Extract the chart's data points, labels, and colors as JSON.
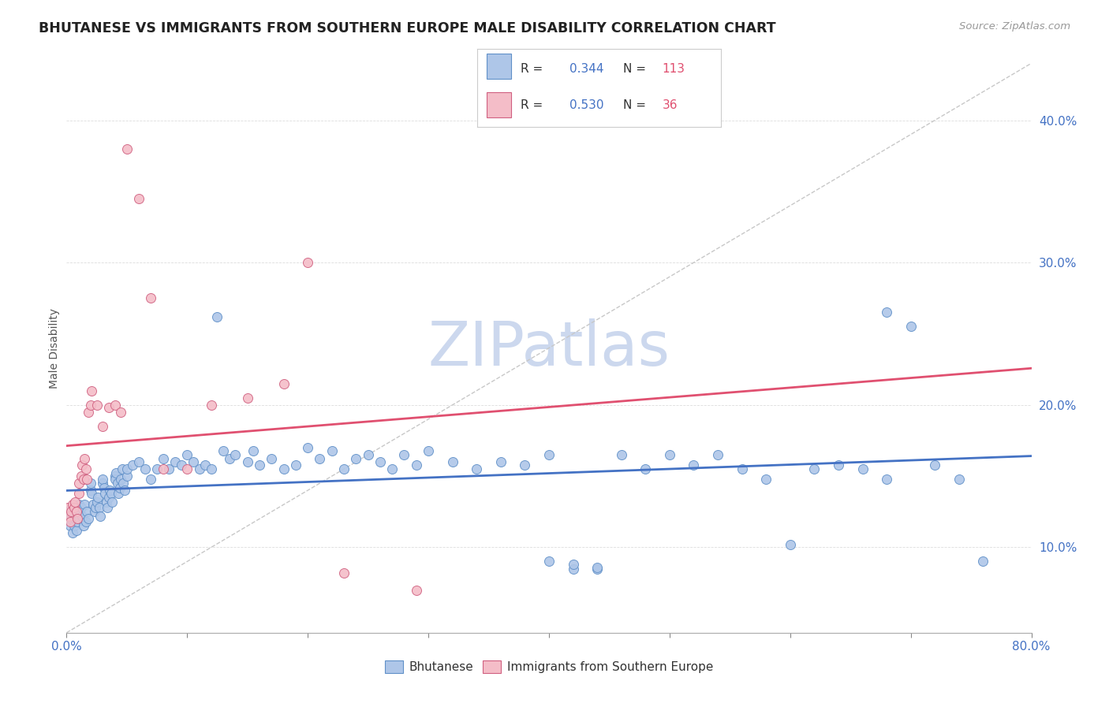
{
  "title": "BHUTANESE VS IMMIGRANTS FROM SOUTHERN EUROPE MALE DISABILITY CORRELATION CHART",
  "source": "Source: ZipAtlas.com",
  "ylabel": "Male Disability",
  "y_ticks": [
    0.1,
    0.2,
    0.3,
    0.4
  ],
  "y_tick_labels": [
    "10.0%",
    "20.0%",
    "30.0%",
    "40.0%"
  ],
  "xlim": [
    0.0,
    0.8
  ],
  "ylim": [
    0.04,
    0.44
  ],
  "blue_R": "0.344",
  "blue_N": "113",
  "pink_R": "0.530",
  "pink_N": "36",
  "blue_color": "#aec6e8",
  "blue_line_color": "#4472c4",
  "blue_edge_color": "#6090c8",
  "pink_color": "#f4bdc8",
  "pink_line_color": "#e05070",
  "pink_edge_color": "#d06080",
  "ref_line_color": "#c8c8c8",
  "watermark": "ZIPatlas",
  "watermark_color": "#ccd8ee",
  "grid_color": "#dddddd",
  "blue_scatter_x": [
    0.001,
    0.002,
    0.003,
    0.004,
    0.005,
    0.006,
    0.007,
    0.008,
    0.009,
    0.01,
    0.01,
    0.011,
    0.012,
    0.013,
    0.014,
    0.015,
    0.016,
    0.017,
    0.018,
    0.02,
    0.02,
    0.021,
    0.022,
    0.023,
    0.024,
    0.025,
    0.026,
    0.027,
    0.028,
    0.03,
    0.03,
    0.031,
    0.032,
    0.033,
    0.034,
    0.035,
    0.036,
    0.037,
    0.038,
    0.04,
    0.04,
    0.041,
    0.042,
    0.043,
    0.044,
    0.045,
    0.046,
    0.047,
    0.048,
    0.05,
    0.05,
    0.055,
    0.06,
    0.065,
    0.07,
    0.075,
    0.08,
    0.085,
    0.09,
    0.095,
    0.1,
    0.105,
    0.11,
    0.115,
    0.12,
    0.125,
    0.13,
    0.135,
    0.14,
    0.15,
    0.155,
    0.16,
    0.17,
    0.18,
    0.19,
    0.2,
    0.21,
    0.22,
    0.23,
    0.24,
    0.25,
    0.26,
    0.27,
    0.28,
    0.29,
    0.3,
    0.32,
    0.34,
    0.36,
    0.38,
    0.4,
    0.42,
    0.44,
    0.46,
    0.48,
    0.5,
    0.52,
    0.54,
    0.56,
    0.58,
    0.6,
    0.62,
    0.64,
    0.66,
    0.68,
    0.7,
    0.72,
    0.74,
    0.76,
    0.68,
    0.4,
    0.42,
    0.44
  ],
  "blue_scatter_y": [
    0.125,
    0.12,
    0.115,
    0.12,
    0.11,
    0.115,
    0.12,
    0.112,
    0.118,
    0.12,
    0.13,
    0.125,
    0.128,
    0.122,
    0.115,
    0.13,
    0.118,
    0.125,
    0.12,
    0.14,
    0.145,
    0.138,
    0.13,
    0.125,
    0.128,
    0.132,
    0.135,
    0.128,
    0.122,
    0.145,
    0.148,
    0.142,
    0.138,
    0.132,
    0.128,
    0.135,
    0.14,
    0.138,
    0.132,
    0.15,
    0.148,
    0.152,
    0.145,
    0.138,
    0.142,
    0.148,
    0.155,
    0.145,
    0.14,
    0.15,
    0.155,
    0.158,
    0.16,
    0.155,
    0.148,
    0.155,
    0.162,
    0.155,
    0.16,
    0.158,
    0.165,
    0.16,
    0.155,
    0.158,
    0.155,
    0.262,
    0.168,
    0.162,
    0.165,
    0.16,
    0.168,
    0.158,
    0.162,
    0.155,
    0.158,
    0.17,
    0.162,
    0.168,
    0.155,
    0.162,
    0.165,
    0.16,
    0.155,
    0.165,
    0.158,
    0.168,
    0.16,
    0.155,
    0.16,
    0.158,
    0.165,
    0.085,
    0.085,
    0.165,
    0.155,
    0.165,
    0.158,
    0.165,
    0.155,
    0.148,
    0.102,
    0.155,
    0.158,
    0.155,
    0.148,
    0.255,
    0.158,
    0.148,
    0.09,
    0.265,
    0.09,
    0.088,
    0.086
  ],
  "pink_scatter_x": [
    0.001,
    0.002,
    0.003,
    0.004,
    0.005,
    0.006,
    0.007,
    0.008,
    0.009,
    0.01,
    0.01,
    0.012,
    0.013,
    0.014,
    0.015,
    0.016,
    0.017,
    0.018,
    0.02,
    0.021,
    0.025,
    0.03,
    0.035,
    0.04,
    0.045,
    0.05,
    0.06,
    0.07,
    0.08,
    0.1,
    0.12,
    0.15,
    0.18,
    0.2,
    0.23,
    0.29
  ],
  "pink_scatter_y": [
    0.128,
    0.122,
    0.118,
    0.125,
    0.13,
    0.128,
    0.132,
    0.125,
    0.12,
    0.138,
    0.145,
    0.15,
    0.158,
    0.148,
    0.162,
    0.155,
    0.148,
    0.195,
    0.2,
    0.21,
    0.2,
    0.185,
    0.198,
    0.2,
    0.195,
    0.38,
    0.345,
    0.275,
    0.155,
    0.155,
    0.2,
    0.205,
    0.215,
    0.3,
    0.082,
    0.07
  ]
}
